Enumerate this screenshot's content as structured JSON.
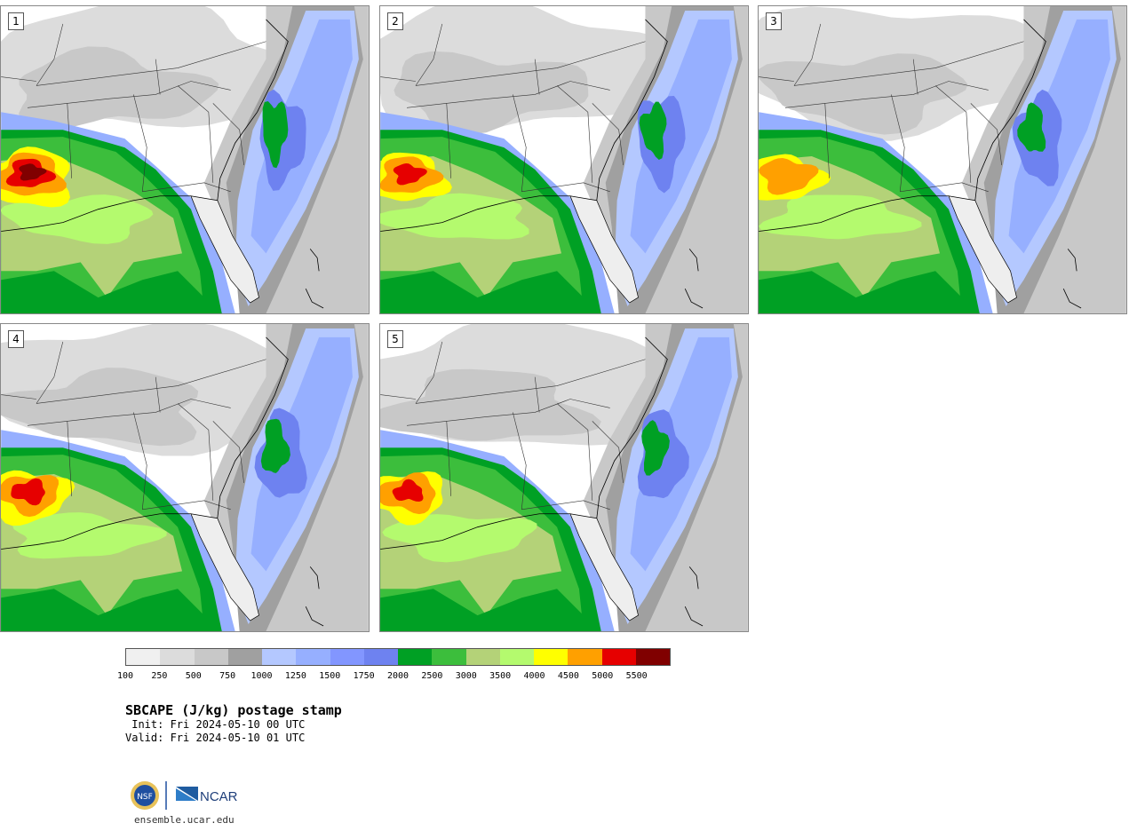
{
  "panels": [
    {
      "number": "1",
      "intensity": 1.0
    },
    {
      "number": "2",
      "intensity": 0.85
    },
    {
      "number": "3",
      "intensity": 0.8
    },
    {
      "number": "4",
      "intensity": 0.9
    },
    {
      "number": "5",
      "intensity": 0.85
    }
  ],
  "colorbar": {
    "colors": [
      "#f0f0f0",
      "#dcdcdc",
      "#c8c8c8",
      "#a0a0a0",
      "#b4c8ff",
      "#96afff",
      "#8296ff",
      "#6e82f0",
      "#00a024",
      "#3cbe3c",
      "#b4d278",
      "#b4fa6e",
      "#ffff00",
      "#ffa000",
      "#e60000",
      "#800000"
    ],
    "labels": [
      "100",
      "250",
      "500",
      "750",
      "1000",
      "1250",
      "1500",
      "1750",
      "2000",
      "2500",
      "3000",
      "3500",
      "4000",
      "4500",
      "5000",
      "5500"
    ]
  },
  "title": "SBCAPE (J/kg) postage stamp",
  "init": " Init: Fri 2024-05-10 00 UTC",
  "valid": "Valid: Fri 2024-05-10 01 UTC",
  "logo": {
    "nsf": "NSF",
    "ncar": "NCAR"
  },
  "url": "ensemble.ucar.edu"
}
